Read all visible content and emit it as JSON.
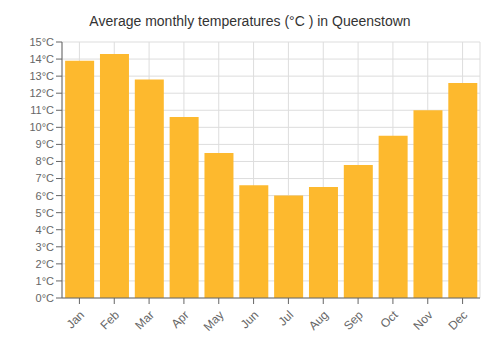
{
  "chart_data": {
    "type": "bar",
    "title": "Average monthly temperatures (°C ) in Queenstown",
    "categories": [
      "Jan",
      "Feb",
      "Mar",
      "Apr",
      "May",
      "Jun",
      "Jul",
      "Aug",
      "Sep",
      "Oct",
      "Nov",
      "Dec"
    ],
    "values": [
      13.9,
      14.3,
      12.8,
      10.6,
      8.5,
      6.6,
      6.0,
      6.5,
      7.8,
      9.5,
      11.0,
      12.6
    ],
    "color": "#FDB92E",
    "ylim": [
      0,
      15
    ],
    "yticks": [
      {
        "value": 0,
        "label": "0°C"
      },
      {
        "value": 1,
        "label": "1°C"
      },
      {
        "value": 2,
        "label": "2°C"
      },
      {
        "value": 3,
        "label": "3°C"
      },
      {
        "value": 4,
        "label": "4°C"
      },
      {
        "value": 5,
        "label": "5°C"
      },
      {
        "value": 6,
        "label": "6°C"
      },
      {
        "value": 7,
        "label": "7°C"
      },
      {
        "value": 8,
        "label": "8°C"
      },
      {
        "value": 9,
        "label": "9°C"
      },
      {
        "value": 10,
        "label": "10°C"
      },
      {
        "value": 11,
        "label": "11°C"
      },
      {
        "value": 12,
        "label": "12°C"
      },
      {
        "value": 13,
        "label": "13°C"
      },
      {
        "value": 14,
        "label": "14°C"
      },
      {
        "value": 15,
        "label": "15°C"
      }
    ],
    "grid": true
  }
}
